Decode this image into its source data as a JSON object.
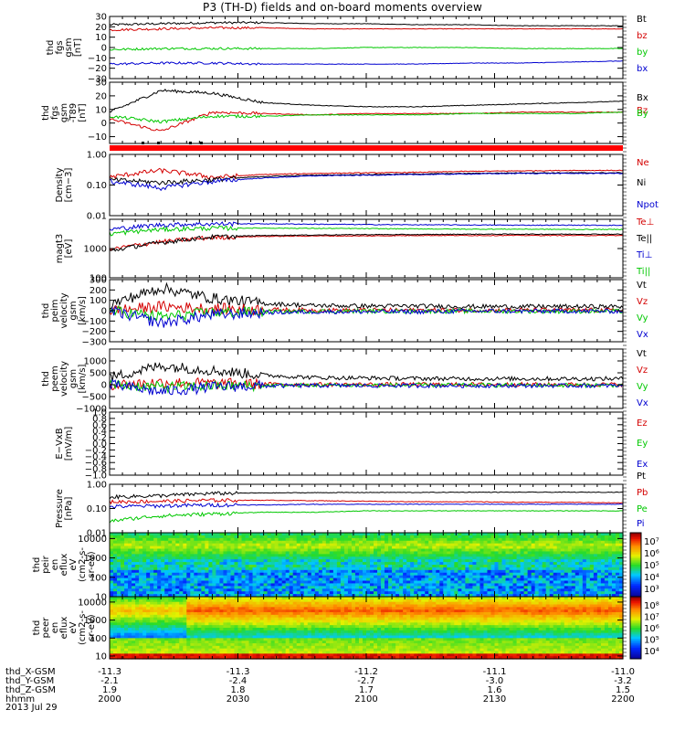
{
  "title": "P3 (TH-D) fields and on-board moments overview",
  "date_label": "2013 Jul 29",
  "colors": {
    "black": "#000000",
    "red": "#d40000",
    "green": "#00c800",
    "blue": "#0000d0"
  },
  "colorbar_icon": "rainbow-colorbar",
  "chart_data": {
    "type": "line",
    "x_axis": {
      "variable": "hhmm",
      "range": [
        "2000",
        "2200"
      ],
      "tick_labels": [
        "2000",
        "2030",
        "2100",
        "2130",
        "2200"
      ],
      "ephemeris": [
        {
          "name": "thd_X-GSM",
          "values": [
            "-11.3",
            "-11.3",
            "-11.2",
            "-11.1",
            "-11.0"
          ]
        },
        {
          "name": "thd_Y-GSM",
          "values": [
            "-2.1",
            "-2.4",
            "-2.7",
            "-3.0",
            "-3.2"
          ]
        },
        {
          "name": "thd_Z-GSM",
          "values": [
            "1.9",
            "1.8",
            "1.7",
            "1.6",
            "1.5"
          ]
        },
        {
          "name": "hhmm",
          "values": [
            "2000",
            "2030",
            "2100",
            "2130",
            "2200"
          ]
        }
      ]
    },
    "panels": [
      {
        "id": "fgs-gsm",
        "type": "line",
        "ylabel": [
          "thd",
          "fgs",
          "gsm",
          "[nT]"
        ],
        "ylim": [
          -30,
          30
        ],
        "yticks": [
          "30",
          "20",
          "10",
          "0",
          "−10",
          "−20",
          "−30"
        ],
        "series": [
          {
            "name": "Bt",
            "color": "#000000",
            "values": [
              22,
              23,
              24,
              24,
              23,
              23,
              22,
              22,
              21,
              21,
              21
            ]
          },
          {
            "name": "bz",
            "color": "#d40000",
            "values": [
              17,
              18,
              19,
              19,
              18,
              18,
              18,
              18,
              18,
              18,
              18
            ]
          },
          {
            "name": "by",
            "color": "#00c800",
            "values": [
              -2,
              -1,
              -1,
              -1,
              -1,
              0,
              0,
              0,
              -1,
              -1,
              -1
            ]
          },
          {
            "name": "bx",
            "color": "#0000d0",
            "values": [
              -16,
              -15,
              -15,
              -16,
              -16,
              -16,
              -16,
              -15,
              -15,
              -14,
              -13
            ]
          }
        ]
      },
      {
        "id": "fgs-gsm-t89",
        "type": "line",
        "ylabel": [
          "thd",
          "fgs",
          "gsm",
          "-T89",
          "[nT]"
        ],
        "ylim": [
          -15,
          30
        ],
        "yticks": [
          "30",
          "20",
          "10",
          "0",
          "−10"
        ],
        "series": [
          {
            "name": "Bx",
            "color": "#000000",
            "values": [
              8,
              24,
              22,
              15,
              13,
              12,
              12,
              13,
              14,
              15,
              16
            ]
          },
          {
            "name": "Bz",
            "color": "#d40000",
            "values": [
              3,
              -6,
              8,
              7,
              6,
              7,
              7,
              7,
              8,
              8,
              8
            ]
          },
          {
            "name": "By",
            "color": "#00c800",
            "values": [
              5,
              1,
              5,
              5,
              6,
              6,
              6,
              7,
              7,
              7,
              8
            ]
          }
        ]
      },
      {
        "id": "density",
        "type": "line",
        "log": true,
        "ylabel": [
          "Density",
          "[cm−3]"
        ],
        "ylim": [
          0.01,
          1.0
        ],
        "yticks": [
          "1.00",
          "0.10",
          "0.01"
        ],
        "series": [
          {
            "name": "Ne",
            "color": "#d40000",
            "values": [
              0.18,
              0.3,
              0.18,
              0.22,
              0.24,
              0.25,
              0.26,
              0.28,
              0.29,
              0.3,
              0.3
            ]
          },
          {
            "name": "Ni",
            "color": "#000000",
            "values": [
              0.15,
              0.12,
              0.15,
              0.19,
              0.21,
              0.22,
              0.23,
              0.24,
              0.25,
              0.25,
              0.25
            ]
          },
          {
            "name": "Npot",
            "color": "#0000d0",
            "values": [
              0.13,
              0.08,
              0.13,
              0.17,
              0.2,
              0.21,
              0.22,
              0.23,
              0.24,
              0.24,
              0.24
            ]
          }
        ]
      },
      {
        "id": "temperature",
        "type": "line",
        "log": true,
        "ylabel": [
          "magt3",
          "[eV]"
        ],
        "ylim": [
          100,
          10000
        ],
        "yticks": [
          "1000",
          "100"
        ],
        "series": [
          {
            "name": "Te⊥",
            "color": "#d40000",
            "values": [
              900,
              1700,
              2400,
              2600,
              2700,
              2700,
              2800,
              2800,
              2800,
              2800,
              2800
            ]
          },
          {
            "name": "Te||",
            "color": "#000000",
            "values": [
              800,
              1600,
              2500,
              2800,
              2900,
              3000,
              3000,
              3100,
              3100,
              3100,
              3100
            ]
          },
          {
            "name": "Ti⊥",
            "color": "#0000d0",
            "values": [
              4500,
              6500,
              7000,
              7000,
              6800,
              6600,
              6500,
              6400,
              6300,
              6300,
              6200
            ]
          },
          {
            "name": "Ti||",
            "color": "#00c800",
            "values": [
              3200,
              4500,
              5000,
              5000,
              4900,
              4800,
              4700,
              4600,
              4600,
              4500,
              4500
            ]
          }
        ]
      },
      {
        "id": "peim-velocity",
        "type": "line",
        "ylabel": [
          "thd",
          "peim",
          "velocity",
          "gsm",
          "[km/s]"
        ],
        "ylim": [
          -300,
          300
        ],
        "yticks": [
          "300",
          "200",
          "100",
          "0",
          "−100",
          "−200",
          "−300"
        ],
        "series": [
          {
            "name": "Vt",
            "color": "#000000",
            "values": [
              60,
              220,
              120,
              70,
              50,
              45,
              45,
              40,
              40,
              40,
              40
            ]
          },
          {
            "name": "Vz",
            "color": "#d40000",
            "values": [
              0,
              40,
              20,
              10,
              5,
              5,
              5,
              5,
              5,
              5,
              5
            ]
          },
          {
            "name": "Vy",
            "color": "#00c800",
            "values": [
              0,
              -60,
              -20,
              -10,
              -5,
              -5,
              -5,
              -5,
              -5,
              -5,
              -5
            ]
          },
          {
            "name": "Vx",
            "color": "#0000d0",
            "values": [
              0,
              -120,
              -40,
              -20,
              -10,
              -10,
              -10,
              -5,
              -5,
              -5,
              -5
            ]
          }
        ]
      },
      {
        "id": "peem-velocity",
        "type": "line",
        "ylabel": [
          "thd",
          "peem",
          "velocity",
          "gsm",
          "[km/s]"
        ],
        "ylim": [
          -1000,
          1500
        ],
        "yticks": [
          "1000",
          "500",
          "0",
          "−500",
          "−1000"
        ],
        "series": [
          {
            "name": "Vt",
            "color": "#000000",
            "values": [
              300,
              800,
              600,
              400,
              300,
              280,
              260,
              250,
              250,
              250,
              250
            ]
          },
          {
            "name": "Vz",
            "color": "#d40000",
            "values": [
              0,
              100,
              60,
              20,
              10,
              10,
              10,
              10,
              10,
              10,
              10
            ]
          },
          {
            "name": "Vy",
            "color": "#00c800",
            "values": [
              0,
              -100,
              -60,
              -30,
              -20,
              -20,
              -20,
              -20,
              -20,
              -20,
              -20
            ]
          },
          {
            "name": "Vx",
            "color": "#0000d0",
            "values": [
              0,
              -300,
              -100,
              -50,
              -40,
              -40,
              -40,
              -40,
              -40,
              -40,
              -40
            ]
          }
        ]
      },
      {
        "id": "e-field",
        "type": "line",
        "ylabel": [
          "E−VxB",
          "[mV/m]"
        ],
        "ylim": [
          -1,
          1
        ],
        "yticks": [
          "1.0",
          "0.8",
          "0.6",
          "0.4",
          "0.2",
          "0.0",
          "−0.2",
          "−0.4",
          "−0.6",
          "−0.8",
          "−1.0"
        ],
        "series": [
          {
            "name": "Ez",
            "color": "#d40000",
            "values": []
          },
          {
            "name": "Ey",
            "color": "#00c800",
            "values": []
          },
          {
            "name": "Ex",
            "color": "#0000d0",
            "values": []
          }
        ]
      },
      {
        "id": "pressure",
        "type": "line",
        "log": true,
        "ylabel": [
          "Pressure",
          "[nPa]"
        ],
        "ylim": [
          0.01,
          1.0
        ],
        "yticks": [
          "1.00",
          "0.10",
          "0.01"
        ],
        "series": [
          {
            "name": "Pt",
            "color": "#000000",
            "values": [
              0.3,
              0.34,
              0.42,
              0.44,
              0.45,
              0.46,
              0.46,
              0.47,
              0.47,
              0.47,
              0.47
            ]
          },
          {
            "name": "Pb",
            "color": "#d40000",
            "values": [
              0.19,
              0.2,
              0.22,
              0.22,
              0.21,
              0.2,
              0.19,
              0.19,
              0.18,
              0.18,
              0.17
            ]
          },
          {
            "name": "Pe",
            "color": "#00c800",
            "values": [
              0.03,
              0.05,
              0.06,
              0.07,
              0.07,
              0.08,
              0.08,
              0.08,
              0.08,
              0.08,
              0.08
            ]
          },
          {
            "name": "Pi",
            "color": "#0000d0",
            "values": [
              0.12,
              0.13,
              0.14,
              0.14,
              0.15,
              0.15,
              0.15,
              0.15,
              0.15,
              0.15,
              0.15
            ]
          }
        ]
      },
      {
        "id": "peir-spectrogram",
        "type": "heatmap",
        "log": true,
        "ylabel": [
          "thd",
          "peir",
          "en",
          "eflux",
          "eV",
          "(cm2-s-",
          "sr-eV)"
        ],
        "ylim": [
          10,
          20000
        ],
        "yticks": [
          "10000",
          "1000",
          "100",
          "10"
        ],
        "colorbar": {
          "range": [
            1000,
            10000000
          ],
          "ticks": [
            "10⁷",
            "10⁶",
            "10⁵",
            "10⁴",
            "10³"
          ]
        }
      },
      {
        "id": "peer-spectrogram",
        "type": "heatmap",
        "log": true,
        "ylabel": [
          "thd",
          "peer",
          "en",
          "eflux",
          "eV",
          "(cm2-s-",
          "sr-eV)"
        ],
        "ylim": [
          7,
          20000
        ],
        "yticks": [
          "10000",
          "1000",
          "100",
          "10"
        ],
        "colorbar": {
          "range": [
            5000,
            100000000
          ],
          "ticks": [
            "10⁸",
            "10⁷",
            "10⁶",
            "10⁵",
            "10⁴"
          ]
        }
      }
    ]
  }
}
